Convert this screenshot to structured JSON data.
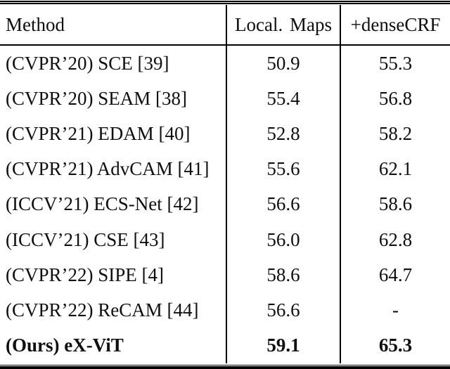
{
  "page": {
    "background_color": "#ffffff",
    "text_color": "#0f0f0f",
    "rule_color": "#000000"
  },
  "table": {
    "header": {
      "method": "Method",
      "local_maps": "Local. Maps",
      "densecrf": "+denseCRF"
    },
    "rows": [
      {
        "method": "(CVPR’20) SCE [39]",
        "local_maps": "50.9",
        "densecrf": "55.3",
        "bold": false
      },
      {
        "method": "(CVPR’20) SEAM [38]",
        "local_maps": "55.4",
        "densecrf": "56.8",
        "bold": false
      },
      {
        "method": "(CVPR’21) EDAM [40]",
        "local_maps": "52.8",
        "densecrf": "58.2",
        "bold": false
      },
      {
        "method": "(CVPR’21) AdvCAM [41]",
        "local_maps": "55.6",
        "densecrf": "62.1",
        "bold": false
      },
      {
        "method": "(ICCV’21) ECS-Net [42]",
        "local_maps": "56.6",
        "densecrf": "58.6",
        "bold": false
      },
      {
        "method": "(ICCV’21) CSE [43]",
        "local_maps": "56.0",
        "densecrf": "62.8",
        "bold": false
      },
      {
        "method": "(CVPR’22) SIPE [4]",
        "local_maps": "58.6",
        "densecrf": "64.7",
        "bold": false
      },
      {
        "method": "(CVPR’22) ReCAM [44]",
        "local_maps": "56.6",
        "densecrf": "-",
        "bold": false
      },
      {
        "method": "(Ours) eX-ViT",
        "local_maps": "59.1",
        "densecrf": "65.3",
        "bold": true
      }
    ]
  }
}
